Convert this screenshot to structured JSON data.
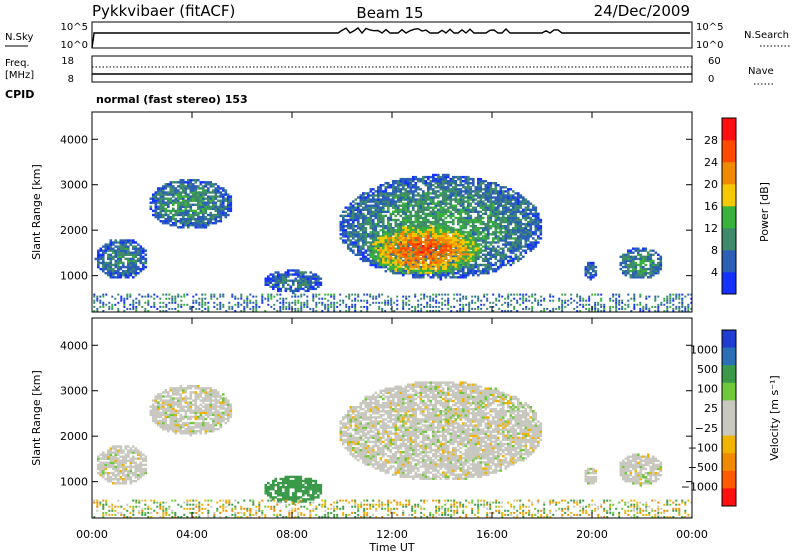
{
  "header": {
    "radar": "Pykkvibaer (fitACF)",
    "beam": "Beam 15",
    "date": "24/Dec/2009"
  },
  "top_panel": {
    "nsky_label": "N.Sky",
    "nsearch_label": "N.Search",
    "nsky_ticks": [
      "10^5",
      "10^0"
    ],
    "right_ticks": [
      "10^5",
      "10^0"
    ],
    "freq_label": "Freq.",
    "freq_unit": "[MHz]",
    "freq_ticks": [
      "18",
      "8"
    ],
    "nave_ticks": [
      "60",
      "0"
    ],
    "nave_label": "Nave",
    "cpid_label": "CPID",
    "cpid_value": "normal (fast stereo) 153"
  },
  "colors": {
    "power_scale": [
      "#1432ff",
      "#2a5fb5",
      "#3f8a6a",
      "#38b23a",
      "#f5c800",
      "#f08a00",
      "#ff4a00",
      "#ff1010"
    ],
    "velocity_scale": [
      "#ff1010",
      "#ff5a00",
      "#f08a00",
      "#f0b400",
      "#c8c8c0",
      "#c8c8c0",
      "#6ec83a",
      "#3a9a4a",
      "#2a6fb5",
      "#1e3cd2"
    ]
  },
  "chart_data": [
    {
      "type": "heatmap",
      "title": "Power",
      "xlabel": "Time UT",
      "ylabel": "Slant Range [km]",
      "xlim": [
        0,
        24
      ],
      "ylim": [
        200,
        4600
      ],
      "x_ticks": [
        "00:00",
        "04:00",
        "08:00",
        "12:00",
        "16:00",
        "20:00",
        "00:00"
      ],
      "y_ticks": [
        1000,
        2000,
        3000,
        4000
      ],
      "colorbar_label": "Power [dB]",
      "colorbar_ticks": [
        4,
        8,
        12,
        16,
        20,
        24,
        28
      ],
      "colorbar_range": [
        0,
        32
      ],
      "echo_regions": [
        {
          "time_start": 0.1,
          "time_end": 2.2,
          "range_start": 900,
          "range_end": 1800,
          "power_db": 10
        },
        {
          "time_start": 2.2,
          "time_end": 5.6,
          "range_start": 2000,
          "range_end": 3100,
          "power_db": 11
        },
        {
          "time_start": 6.8,
          "time_end": 9.2,
          "range_start": 600,
          "range_end": 1100,
          "power_db": 8
        },
        {
          "time_start": 9.8,
          "time_end": 18.0,
          "range_start": 900,
          "range_end": 3200,
          "power_db": 12
        },
        {
          "time_start": 11.0,
          "time_end": 15.5,
          "range_start": 1000,
          "range_end": 2100,
          "power_db": 26
        },
        {
          "time_start": 19.6,
          "time_end": 20.2,
          "range_start": 900,
          "range_end": 1300,
          "power_db": 8
        },
        {
          "time_start": 21.0,
          "time_end": 22.8,
          "range_start": 900,
          "range_end": 1600,
          "power_db": 12
        }
      ]
    },
    {
      "type": "heatmap",
      "title": "Velocity",
      "xlabel": "Time UT",
      "ylabel": "Slant Range [km]",
      "xlim": [
        0,
        24
      ],
      "ylim": [
        200,
        4600
      ],
      "x_ticks": [
        "00:00",
        "04:00",
        "08:00",
        "12:00",
        "16:00",
        "20:00",
        "00:00"
      ],
      "y_ticks": [
        1000,
        2000,
        3000,
        4000
      ],
      "colorbar_label": "Velocity [m s⁻¹]",
      "colorbar_ticks": [
        "1000",
        "500",
        "100",
        "25",
        "−25",
        "−100",
        "−500",
        "−1000"
      ],
      "echo_regions": [
        {
          "time_start": 0.1,
          "time_end": 2.2,
          "range_start": 900,
          "range_end": 1800,
          "velocity": 0
        },
        {
          "time_start": 2.2,
          "time_end": 5.6,
          "range_start": 2000,
          "range_end": 3100,
          "velocity": 0
        },
        {
          "time_start": 6.8,
          "time_end": 9.2,
          "range_start": 500,
          "range_end": 1100,
          "velocity": 150
        },
        {
          "time_start": 9.8,
          "time_end": 18.0,
          "range_start": 1000,
          "range_end": 3200,
          "velocity": 0
        },
        {
          "time_start": 19.6,
          "time_end": 20.2,
          "range_start": 900,
          "range_end": 1300,
          "velocity": 0
        },
        {
          "time_start": 21.0,
          "time_end": 22.8,
          "range_start": 900,
          "range_end": 1600,
          "velocity": 0
        }
      ]
    }
  ]
}
